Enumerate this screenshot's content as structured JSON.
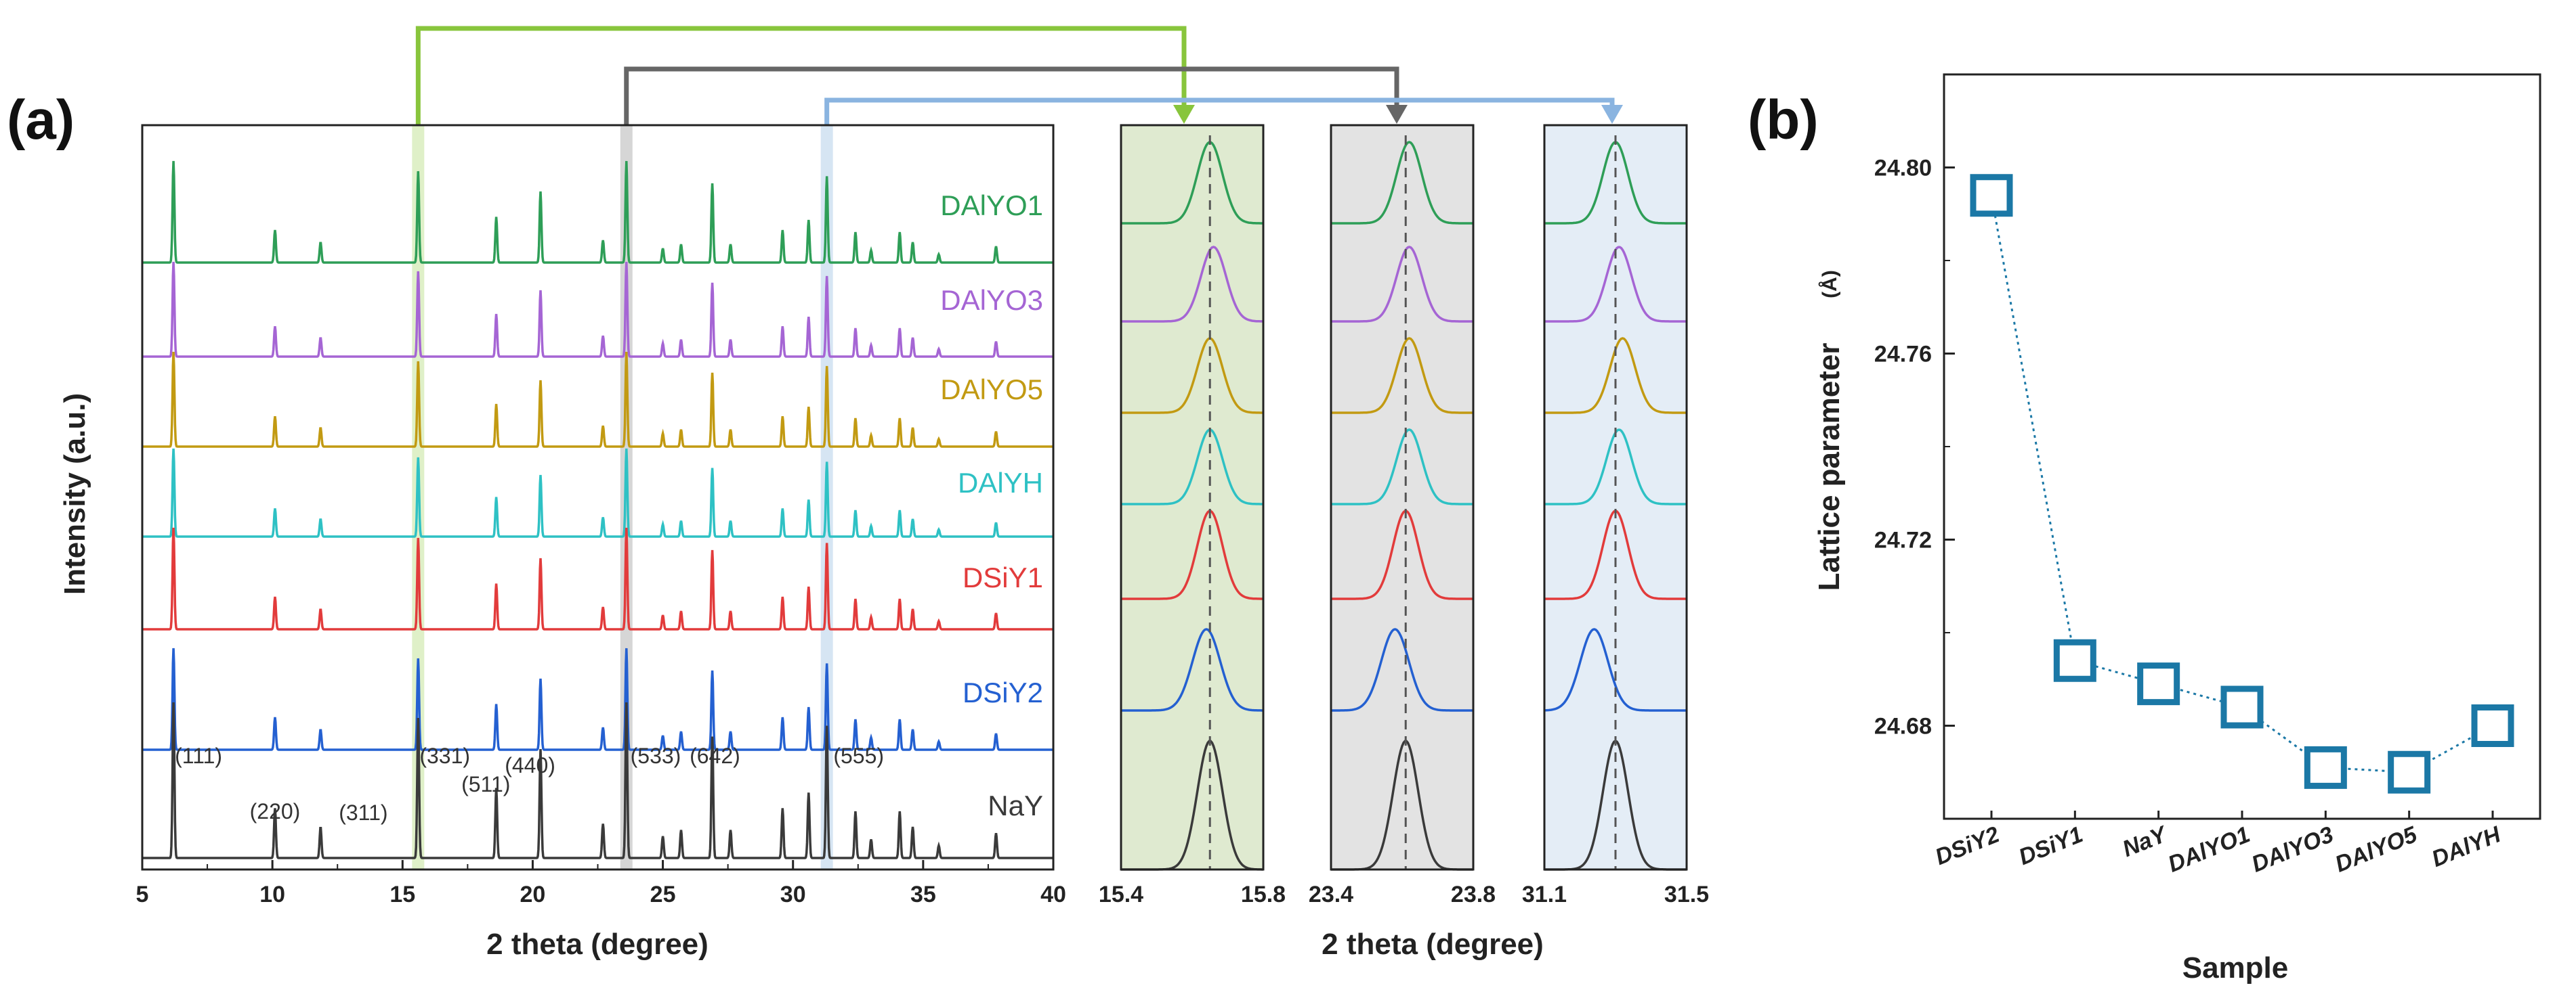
{
  "colors": {
    "DAlYO1": "#2e9e57",
    "DAlYO3": "#a565d4",
    "DAlYO5": "#c29a12",
    "DAlYH": "#2ec1c4",
    "DSiY1": "#e23b3b",
    "DSiY2": "#2460d1",
    "NaY": "#3a3a3a",
    "green_arrow": "#88c53c",
    "gray_arrow": "#666666",
    "blue_arrow": "#8ab4e0",
    "markers_b": "#1b78a6"
  },
  "chart_data": [
    {
      "id": "a-main",
      "type": "line",
      "panel_label": "(a)",
      "xlabel": "2 theta (degree)",
      "ylabel": "Intensity (a.u.)",
      "xlim": [
        5,
        40
      ],
      "xticks": [
        "5",
        "10",
        "15",
        "20",
        "25",
        "30",
        "35",
        "40"
      ],
      "series_order_top_to_bottom": [
        "DAlYO1",
        "DAlYO3",
        "DAlYO5",
        "DAlYH",
        "DSiY1",
        "DSiY2",
        "NaY"
      ],
      "series": [
        {
          "name": "DAlYO1",
          "label": "DAlYO1"
        },
        {
          "name": "DAlYO3",
          "label": "DAlYO3"
        },
        {
          "name": "DAlYO5",
          "label": "DAlYO5"
        },
        {
          "name": "DAlYH",
          "label": "DAlYH"
        },
        {
          "name": "DSiY1",
          "label": "DSiY1"
        },
        {
          "name": "DSiY2",
          "label": "DSiY2"
        },
        {
          "name": "NaY",
          "label": "NaY"
        }
      ],
      "peaks": [
        {
          "x": 6.2,
          "h": 1.0,
          "hkl": "(111)"
        },
        {
          "x": 10.1,
          "h": 0.32,
          "hkl": "(220)"
        },
        {
          "x": 11.85,
          "h": 0.2,
          "hkl": "(311)"
        },
        {
          "x": 15.6,
          "h": 0.9,
          "hkl": "(331)"
        },
        {
          "x": 18.6,
          "h": 0.45,
          "hkl": "(511)"
        },
        {
          "x": 20.3,
          "h": 0.7,
          "hkl": "(440)"
        },
        {
          "x": 22.7,
          "h": 0.22,
          "hkl": ""
        },
        {
          "x": 23.6,
          "h": 1.0,
          "hkl": "(533)"
        },
        {
          "x": 25.0,
          "h": 0.14,
          "hkl": ""
        },
        {
          "x": 25.7,
          "h": 0.18,
          "hkl": ""
        },
        {
          "x": 26.9,
          "h": 0.78,
          "hkl": "(642)"
        },
        {
          "x": 27.6,
          "h": 0.18,
          "hkl": ""
        },
        {
          "x": 29.6,
          "h": 0.32,
          "hkl": ""
        },
        {
          "x": 30.6,
          "h": 0.42,
          "hkl": ""
        },
        {
          "x": 31.3,
          "h": 0.85,
          "hkl": "(555)"
        },
        {
          "x": 32.4,
          "h": 0.3,
          "hkl": ""
        },
        {
          "x": 33.0,
          "h": 0.12,
          "hkl": ""
        },
        {
          "x": 34.1,
          "h": 0.3,
          "hkl": ""
        },
        {
          "x": 34.6,
          "h": 0.2,
          "hkl": ""
        },
        {
          "x": 35.6,
          "h": 0.08,
          "hkl": ""
        },
        {
          "x": 37.8,
          "h": 0.16,
          "hkl": ""
        }
      ],
      "highlight_bands_x": [
        15.6,
        23.6,
        31.3
      ]
    },
    {
      "id": "a-zoom1",
      "type": "line",
      "xlim": [
        15.4,
        15.8
      ],
      "xticks": [
        "15.4",
        "15.8"
      ],
      "reference_line_x": 15.65,
      "peak_centers": {
        "DAlYO1": 15.65,
        "DAlYO3": 15.66,
        "DAlYO5": 15.65,
        "DAlYH": 15.65,
        "DSiY1": 15.65,
        "DSiY2": 15.64,
        "NaY": 15.65
      },
      "shade": "#dfead0"
    },
    {
      "id": "a-zoom2",
      "type": "line",
      "xlabel": "2 theta (degree)",
      "xlim": [
        23.4,
        23.8
      ],
      "xticks": [
        "23.4",
        "23.8"
      ],
      "reference_line_x": 23.61,
      "peak_centers": {
        "DAlYO1": 23.62,
        "DAlYO3": 23.62,
        "DAlYO5": 23.62,
        "DAlYH": 23.62,
        "DSiY1": 23.61,
        "DSiY2": 23.58,
        "NaY": 23.61
      },
      "shade": "#e3e3e3"
    },
    {
      "id": "a-zoom3",
      "type": "line",
      "xlim": [
        31.1,
        31.5
      ],
      "xticks": [
        "31.1",
        "31.5"
      ],
      "reference_line_x": 31.3,
      "peak_centers": {
        "DAlYO1": 31.3,
        "DAlYO3": 31.31,
        "DAlYO5": 31.32,
        "DAlYH": 31.31,
        "DSiY1": 31.3,
        "DSiY2": 31.24,
        "NaY": 31.3
      },
      "shade": "#e4edf6"
    },
    {
      "id": "b",
      "type": "scatter",
      "panel_label": "(b)",
      "xlabel": "Sample",
      "ylabel": "Lattice parameter",
      "ylabel_unit": "(Å)",
      "categories": [
        "DSiY2",
        "DSiY1",
        "NaY",
        "DAlYO1",
        "DAlYO3",
        "DAlYO5",
        "DAlYH"
      ],
      "values": [
        24.794,
        24.694,
        24.689,
        24.684,
        24.671,
        24.67,
        24.68
      ],
      "ylim": [
        24.66,
        24.82
      ],
      "yticks": [
        "24.68",
        "24.72",
        "24.76",
        "24.80"
      ]
    }
  ]
}
